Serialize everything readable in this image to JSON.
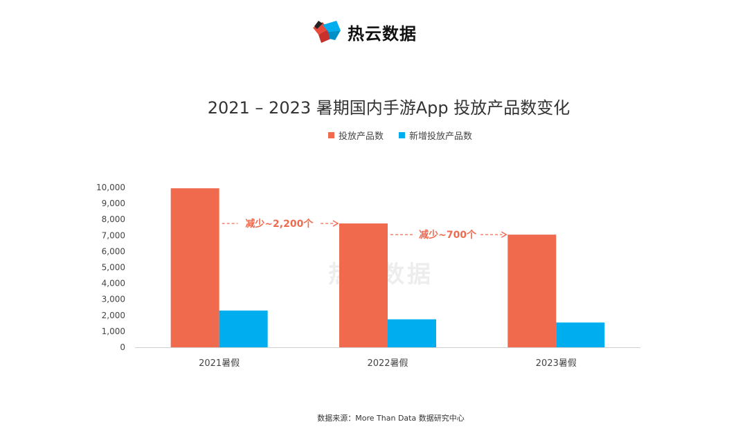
{
  "brand": {
    "name": "热云数据",
    "watermark": "热云数据"
  },
  "chart_data": {
    "type": "bar",
    "title": "2021 – 2023 暑期国内手游App 投放产品数变化",
    "categories": [
      "2021暑假",
      "2022暑假",
      "2023暑假"
    ],
    "series": [
      {
        "name": "投放产品数",
        "color": "#F06A4E",
        "values": [
          9950,
          7750,
          7050
        ]
      },
      {
        "name": "新增投放产品数",
        "color": "#00AEEF",
        "values": [
          2300,
          1750,
          1550
        ]
      }
    ],
    "ylim": [
      0,
      10000
    ],
    "yticks": [
      "0",
      "1,000",
      "2,000",
      "3,000",
      "4,000",
      "5,000",
      "6,000",
      "7,000",
      "8,000",
      "9,000",
      "10,000"
    ],
    "grid": false,
    "legend_position": "top-center",
    "annotations": [
      {
        "text": "减少~2,200个",
        "from": 0,
        "to": 1
      },
      {
        "text": "减少~700个",
        "from": 1,
        "to": 2
      }
    ]
  },
  "footer": {
    "source": "数据来源：More Than Data 数据研究中心"
  },
  "colors": {
    "annotation": "#F06A4E",
    "axis": "#D0D0D0",
    "text": "#333333"
  }
}
